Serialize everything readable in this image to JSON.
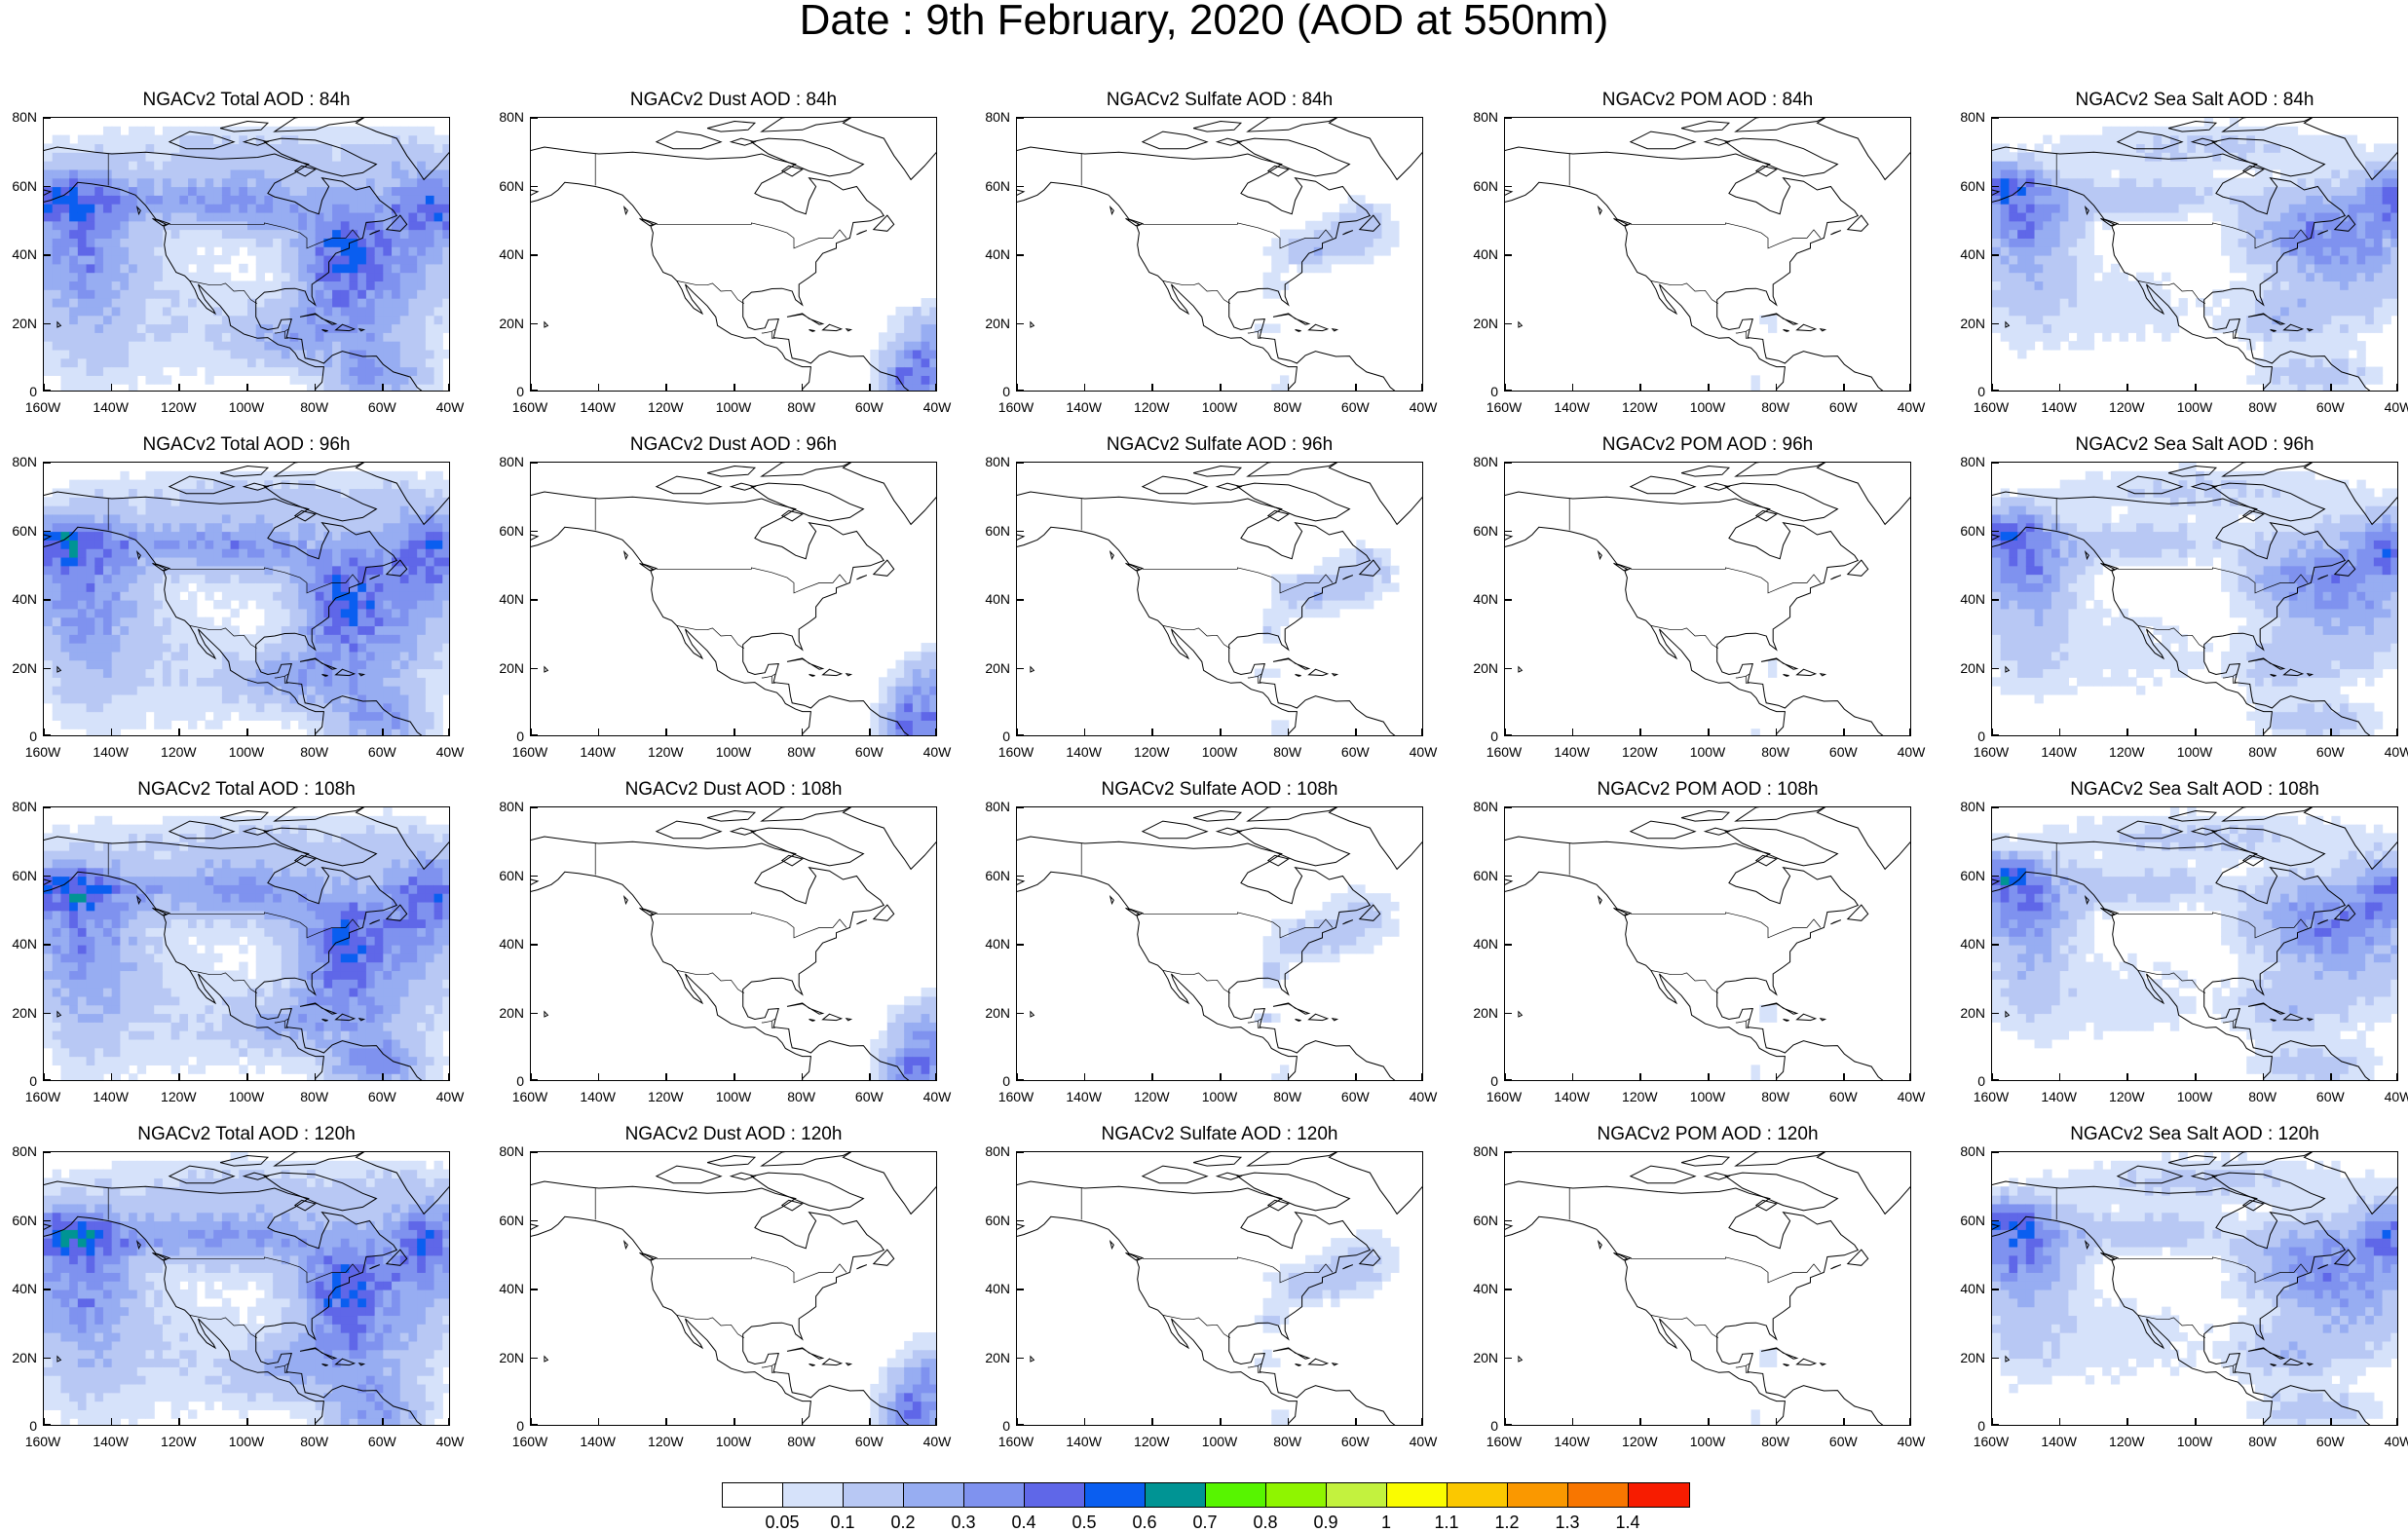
{
  "title": "Date : 9th February, 2020 (AOD at 550nm)",
  "panels": [
    [
      "NGACv2 Total AOD : 84h",
      "NGACv2 Dust AOD : 84h",
      "NGACv2 Sulfate AOD : 84h",
      "NGACv2 POM AOD : 84h",
      "NGACv2 Sea Salt AOD : 84h"
    ],
    [
      "NGACv2 Total AOD : 96h",
      "NGACv2 Dust AOD : 96h",
      "NGACv2 Sulfate AOD : 96h",
      "NGACv2 POM AOD : 96h",
      "NGACv2 Sea Salt AOD : 96h"
    ],
    [
      "NGACv2 Total AOD : 108h",
      "NGACv2 Dust AOD : 108h",
      "NGACv2 Sulfate AOD : 108h",
      "NGACv2 POM AOD : 108h",
      "NGACv2 Sea Salt AOD : 108h"
    ],
    [
      "NGACv2 Total AOD : 120h",
      "NGACv2 Dust AOD : 120h",
      "NGACv2 Sulfate AOD : 120h",
      "NGACv2 POM AOD : 120h",
      "NGACv2 Sea Salt  AOD : 120h"
    ]
  ],
  "lat_labels": [
    "80N",
    "60N",
    "40N",
    "20N",
    "0"
  ],
  "lon_labels": [
    "160W",
    "140W",
    "120W",
    "100W",
    "80W",
    "60W",
    "40W"
  ],
  "map_extent": {
    "lon": [
      -160,
      -40
    ],
    "lat": [
      0,
      80
    ]
  },
  "colorbar": {
    "colors": [
      "#ffffff",
      "#d6e2fa",
      "#b8c8f4",
      "#97adf2",
      "#7f92ef",
      "#5f67e8",
      "#0a5ef0",
      "#009494",
      "#57f500",
      "#8ff500",
      "#c3f23e",
      "#fafc00",
      "#fbc800",
      "#fa9800",
      "#f87600",
      "#f71c00"
    ],
    "labels": [
      "0.05",
      "0.1",
      "0.2",
      "0.3",
      "0.4",
      "0.5",
      "0.6",
      "0.7",
      "0.8",
      "0.9",
      "1",
      "1.1",
      "1.2",
      "1.3",
      "1.4"
    ]
  }
}
